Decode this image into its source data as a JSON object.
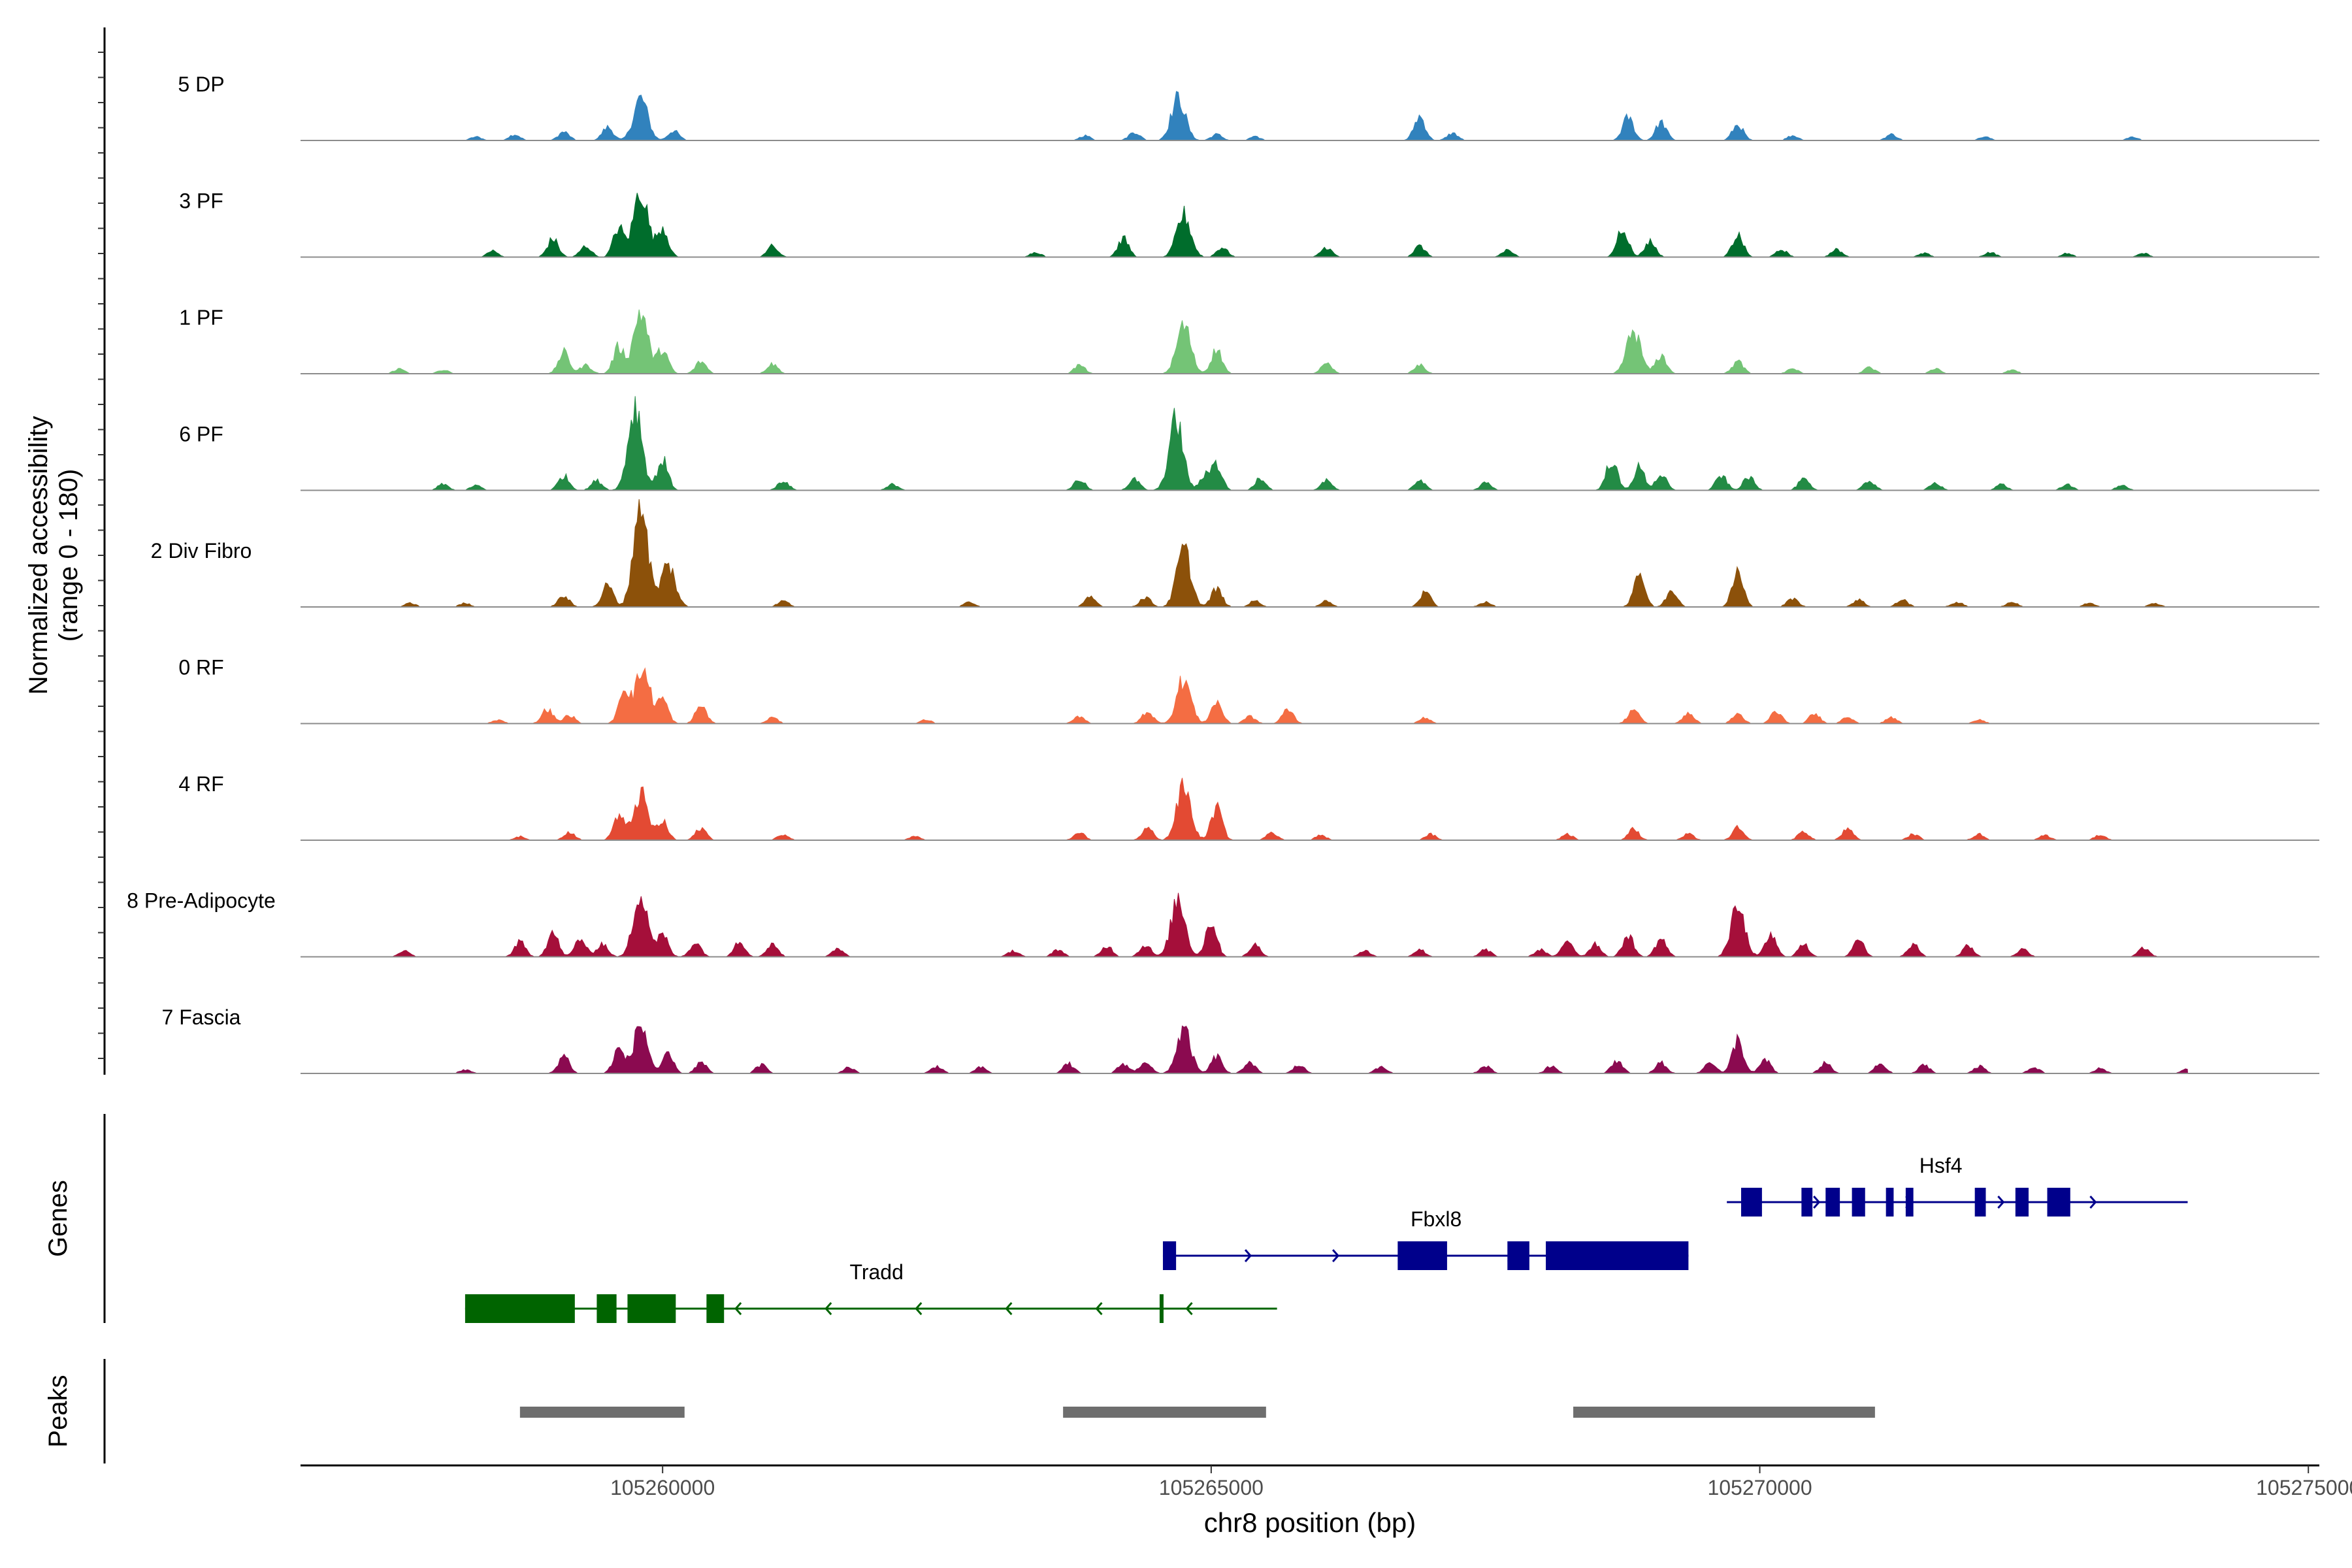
{
  "chart_data": {
    "type": "area",
    "title": "",
    "xlabel": "chr8 position (bp)",
    "ylabel_line1": "Normalized accessibility",
    "ylabel_line2": "(range 0 - 180)",
    "xlim": [
      105256700,
      105275100
    ],
    "ylim": [
      0,
      180
    ],
    "x_ticks": [
      105260000,
      105265000,
      105270000,
      105275000
    ],
    "x_tick_labels": [
      "105260000",
      "105265000",
      "105270000",
      "105275000"
    ],
    "peak_centers": [
      105259800,
      105264750,
      105266050,
      105266900,
      105269800,
      105261000
    ],
    "tracks": [
      {
        "name": "5 DP",
        "color": "#3182bd",
        "peaks": [
          [
            105258300,
            6
          ],
          [
            105258650,
            10
          ],
          [
            105259100,
            14
          ],
          [
            105259500,
            22
          ],
          [
            105259800,
            70
          ],
          [
            105260100,
            16
          ],
          [
            105263850,
            8
          ],
          [
            105264300,
            14
          ],
          [
            105264700,
            70
          ],
          [
            105265050,
            10
          ],
          [
            105265400,
            6
          ],
          [
            105266900,
            40
          ],
          [
            105267200,
            12
          ],
          [
            105268800,
            38
          ],
          [
            105269100,
            30
          ],
          [
            105269800,
            26
          ],
          [
            105270300,
            8
          ],
          [
            105271200,
            10
          ],
          [
            105272050,
            6
          ],
          [
            105273400,
            6
          ]
        ]
      },
      {
        "name": "3 PF",
        "color": "#006d2c",
        "peaks": [
          [
            105258450,
            10
          ],
          [
            105259000,
            30
          ],
          [
            105259300,
            18
          ],
          [
            105259600,
            48
          ],
          [
            105259800,
            112
          ],
          [
            105260000,
            50
          ],
          [
            105261000,
            18
          ],
          [
            105263400,
            8
          ],
          [
            105264200,
            30
          ],
          [
            105264750,
            70
          ],
          [
            105265100,
            16
          ],
          [
            105266050,
            16
          ],
          [
            105266900,
            18
          ],
          [
            105267700,
            12
          ],
          [
            105268750,
            50
          ],
          [
            105269000,
            26
          ],
          [
            105269800,
            36
          ],
          [
            105270200,
            12
          ],
          [
            105270700,
            12
          ],
          [
            105271500,
            6
          ],
          [
            105272100,
            8
          ],
          [
            105272800,
            6
          ],
          [
            105273500,
            6
          ]
        ]
      },
      {
        "name": "1 PF",
        "color": "#74c476",
        "peaks": [
          [
            105257600,
            8
          ],
          [
            105258000,
            6
          ],
          [
            105259100,
            35
          ],
          [
            105259300,
            14
          ],
          [
            105259600,
            44
          ],
          [
            105259800,
            104
          ],
          [
            105260000,
            40
          ],
          [
            105260350,
            20
          ],
          [
            105261000,
            16
          ],
          [
            105263800,
            14
          ],
          [
            105264750,
            80
          ],
          [
            105265050,
            40
          ],
          [
            105266050,
            16
          ],
          [
            105266900,
            14
          ],
          [
            105268850,
            70
          ],
          [
            105269100,
            30
          ],
          [
            105269800,
            20
          ],
          [
            105270300,
            8
          ],
          [
            105271000,
            10
          ],
          [
            105271600,
            8
          ],
          [
            105272300,
            6
          ]
        ]
      },
      {
        "name": "6 PF",
        "color": "#238b45",
        "peaks": [
          [
            105258000,
            10
          ],
          [
            105258300,
            8
          ],
          [
            105259100,
            24
          ],
          [
            105259400,
            16
          ],
          [
            105259750,
            140
          ],
          [
            105260000,
            50
          ],
          [
            105261100,
            16
          ],
          [
            105262100,
            10
          ],
          [
            105263800,
            18
          ],
          [
            105264300,
            18
          ],
          [
            105264680,
            115
          ],
          [
            105264950,
            24
          ],
          [
            105265050,
            40
          ],
          [
            105265450,
            20
          ],
          [
            105266050,
            16
          ],
          [
            105266900,
            16
          ],
          [
            105267500,
            12
          ],
          [
            105268650,
            50
          ],
          [
            105268900,
            38
          ],
          [
            105269100,
            26
          ],
          [
            105269650,
            24
          ],
          [
            105269900,
            22
          ],
          [
            105270400,
            18
          ],
          [
            105271000,
            16
          ],
          [
            105271600,
            12
          ],
          [
            105272200,
            10
          ],
          [
            105272800,
            10
          ],
          [
            105273300,
            8
          ]
        ]
      },
      {
        "name": "2 Div Fibro",
        "color": "#8c510a",
        "peaks": [
          [
            105257700,
            6
          ],
          [
            105258200,
            6
          ],
          [
            105259100,
            18
          ],
          [
            105259500,
            36
          ],
          [
            105259800,
            180
          ],
          [
            105260050,
            70
          ],
          [
            105261100,
            10
          ],
          [
            105262800,
            8
          ],
          [
            105263900,
            16
          ],
          [
            105264400,
            16
          ],
          [
            105264750,
            95
          ],
          [
            105265050,
            30
          ],
          [
            105265400,
            10
          ],
          [
            105266050,
            10
          ],
          [
            105266950,
            24
          ],
          [
            105267500,
            8
          ],
          [
            105268900,
            58
          ],
          [
            105269200,
            28
          ],
          [
            105269800,
            58
          ],
          [
            105270300,
            14
          ],
          [
            105270900,
            12
          ],
          [
            105271300,
            12
          ],
          [
            105271800,
            8
          ],
          [
            105272300,
            8
          ],
          [
            105273000,
            6
          ],
          [
            105273600,
            6
          ]
        ]
      },
      {
        "name": "0 RF",
        "color": "#f46d43",
        "peaks": [
          [
            105258500,
            6
          ],
          [
            105258950,
            24
          ],
          [
            105259150,
            14
          ],
          [
            105259650,
            60
          ],
          [
            105259820,
            90
          ],
          [
            105260000,
            40
          ],
          [
            105260350,
            30
          ],
          [
            105261000,
            10
          ],
          [
            105262400,
            6
          ],
          [
            105263800,
            12
          ],
          [
            105264420,
            20
          ],
          [
            105264750,
            74
          ],
          [
            105265050,
            36
          ],
          [
            105265350,
            12
          ],
          [
            105265700,
            24
          ],
          [
            105266950,
            10
          ],
          [
            105268850,
            24
          ],
          [
            105269350,
            18
          ],
          [
            105269800,
            16
          ],
          [
            105270150,
            20
          ],
          [
            105270500,
            16
          ],
          [
            105270800,
            12
          ],
          [
            105271200,
            10
          ],
          [
            105272000,
            6
          ]
        ]
      },
      {
        "name": "4 RF",
        "color": "#e34a33",
        "peaks": [
          [
            105258700,
            6
          ],
          [
            105259150,
            14
          ],
          [
            105259600,
            40
          ],
          [
            105259800,
            76
          ],
          [
            105260000,
            30
          ],
          [
            105260350,
            20
          ],
          [
            105261100,
            10
          ],
          [
            105262300,
            6
          ],
          [
            105263800,
            12
          ],
          [
            105264420,
            20
          ],
          [
            105264750,
            88
          ],
          [
            105265050,
            54
          ],
          [
            105265550,
            14
          ],
          [
            105266000,
            8
          ],
          [
            105267000,
            10
          ],
          [
            105268250,
            10
          ],
          [
            105268850,
            18
          ],
          [
            105269350,
            10
          ],
          [
            105269800,
            20
          ],
          [
            105270400,
            14
          ],
          [
            105270800,
            18
          ],
          [
            105271400,
            10
          ],
          [
            105272000,
            10
          ],
          [
            105272600,
            8
          ],
          [
            105273100,
            8
          ]
        ]
      },
      {
        "name": "8 Pre-Adipocyte",
        "color": "#a50f3a",
        "peaks": [
          [
            105257650,
            10
          ],
          [
            105258700,
            24
          ],
          [
            105259000,
            40
          ],
          [
            105259250,
            30
          ],
          [
            105259450,
            22
          ],
          [
            105259800,
            112
          ],
          [
            105260000,
            36
          ],
          [
            105260300,
            24
          ],
          [
            105260700,
            26
          ],
          [
            105261000,
            22
          ],
          [
            105261600,
            14
          ],
          [
            105263200,
            10
          ],
          [
            105263600,
            12
          ],
          [
            105264050,
            18
          ],
          [
            105264400,
            20
          ],
          [
            105264700,
            96
          ],
          [
            105265000,
            60
          ],
          [
            105265400,
            20
          ],
          [
            105266400,
            10
          ],
          [
            105266900,
            12
          ],
          [
            105267500,
            12
          ],
          [
            105268000,
            12
          ],
          [
            105268250,
            28
          ],
          [
            105268500,
            22
          ],
          [
            105268800,
            36
          ],
          [
            105269100,
            30
          ],
          [
            105269800,
            80
          ],
          [
            105270100,
            36
          ],
          [
            105270400,
            20
          ],
          [
            105270900,
            30
          ],
          [
            105271400,
            20
          ],
          [
            105271900,
            18
          ],
          [
            105272400,
            12
          ],
          [
            105273500,
            14
          ]
        ]
      },
      {
        "name": "7 Fascia",
        "color": "#8b0a50",
        "peaks": [
          [
            105258200,
            6
          ],
          [
            105259100,
            30
          ],
          [
            105259600,
            40
          ],
          [
            105259800,
            80
          ],
          [
            105260050,
            30
          ],
          [
            105260350,
            18
          ],
          [
            105260900,
            14
          ],
          [
            105261700,
            10
          ],
          [
            105262500,
            12
          ],
          [
            105262900,
            10
          ],
          [
            105263700,
            16
          ],
          [
            105264200,
            16
          ],
          [
            105264400,
            20
          ],
          [
            105264750,
            72
          ],
          [
            105265050,
            28
          ],
          [
            105265350,
            20
          ],
          [
            105265800,
            14
          ],
          [
            105266550,
            12
          ],
          [
            105267500,
            12
          ],
          [
            105268100,
            12
          ],
          [
            105268700,
            22
          ],
          [
            105269100,
            18
          ],
          [
            105269550,
            20
          ],
          [
            105269800,
            56
          ],
          [
            105270050,
            22
          ],
          [
            105270600,
            18
          ],
          [
            105271100,
            16
          ],
          [
            105271500,
            14
          ],
          [
            105272000,
            12
          ],
          [
            105272500,
            10
          ],
          [
            105273100,
            8
          ],
          [
            105273900,
            8
          ]
        ]
      }
    ],
    "genes_track_label": "Genes",
    "genes": [
      {
        "name": "Tradd",
        "color": "#006400",
        "strand": "-",
        "start": 105258200,
        "end": 105265600,
        "exons": [
          [
            105258200,
            105259200
          ],
          [
            105259400,
            105259580
          ],
          [
            105259680,
            105260120
          ],
          [
            105260400,
            105260560
          ],
          [
            105264530,
            105264560
          ]
        ]
      },
      {
        "name": "Fbxl8",
        "color": "#00008b",
        "strand": "+",
        "start": 105264560,
        "end": 105269350,
        "exons": [
          [
            105264560,
            105264680
          ],
          [
            105266700,
            105267150
          ],
          [
            105267700,
            105267900
          ],
          [
            105268050,
            105269350
          ]
        ]
      },
      {
        "name": "Hsf4",
        "color": "#00008b",
        "strand": "+",
        "start": 105269700,
        "end": 105273900,
        "exons": [
          [
            105269830,
            105270020
          ],
          [
            105270380,
            105270480
          ],
          [
            105270600,
            105270730
          ],
          [
            105270840,
            105270960
          ],
          [
            105271150,
            105271220
          ],
          [
            105271330,
            105271400
          ],
          [
            105271960,
            105272060
          ],
          [
            105272330,
            105272450
          ],
          [
            105272620,
            105272830
          ]
        ]
      }
    ],
    "peaks_track_label": "Peaks",
    "peak_regions": [
      [
        105258700,
        105260200
      ],
      [
        105263650,
        105265500
      ],
      [
        105268300,
        105271050
      ]
    ]
  }
}
